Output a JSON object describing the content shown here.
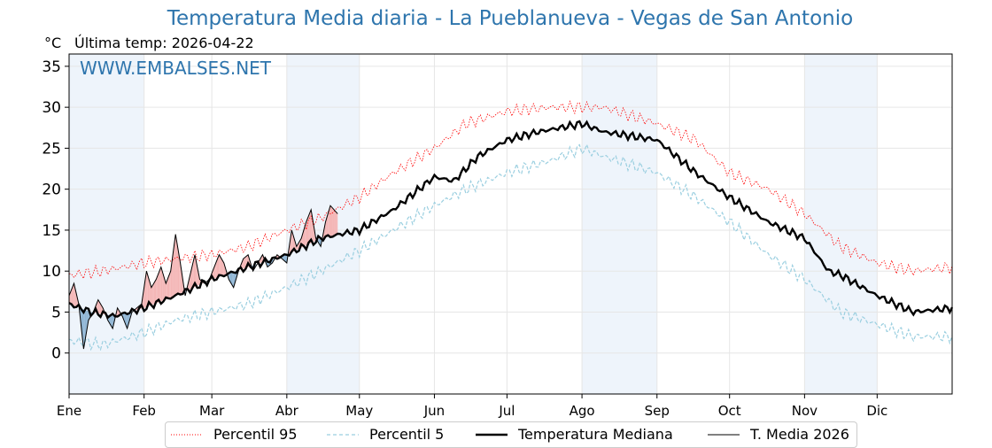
{
  "title": "Temperatura Media diaria - La Pueblanueva - Vegas de San Antonio",
  "unit_label": "°C",
  "last_temp_label": "Última temp: 2026-04-22",
  "watermark": "WWW.EMBALSES.NET",
  "colors": {
    "title": "#2e75ad",
    "p95": "#ff0000",
    "p5": "#9bcfe0",
    "median": "#000000",
    "current": "#000000",
    "above_fill": "#f4b6b6",
    "below_fill": "#8fb5d4",
    "band": "#eef4fb"
  },
  "legend": {
    "p95": "Percentil 95",
    "p5": "Percentil 5",
    "median": "Temperatura Mediana",
    "current": "T. Media 2026"
  },
  "chart_data": {
    "type": "line",
    "xlabel": "",
    "ylabel": "°C",
    "ylim": [
      -5,
      36.5
    ],
    "xlim": [
      1,
      366
    ],
    "yticks": [
      0,
      5,
      10,
      15,
      20,
      25,
      30,
      35
    ],
    "month_ticks": [
      {
        "day": 1,
        "label": "Ene"
      },
      {
        "day": 32,
        "label": "Feb"
      },
      {
        "day": 60,
        "label": "Mar"
      },
      {
        "day": 91,
        "label": "Abr"
      },
      {
        "day": 121,
        "label": "May"
      },
      {
        "day": 152,
        "label": "Jun"
      },
      {
        "day": 182,
        "label": "Jul"
      },
      {
        "day": 213,
        "label": "Ago"
      },
      {
        "day": 244,
        "label": "Sep"
      },
      {
        "day": 274,
        "label": "Oct"
      },
      {
        "day": 305,
        "label": "Nov"
      },
      {
        "day": 335,
        "label": "Dic"
      }
    ],
    "shaded_months": [
      [
        1,
        32
      ],
      [
        91,
        121
      ],
      [
        213,
        244
      ],
      [
        305,
        335
      ]
    ],
    "grid": true,
    "series": [
      {
        "name": "Percentil 95",
        "key": "p95",
        "style": "dotted",
        "x": [
          1,
          15,
          32,
          45,
          60,
          75,
          91,
          105,
          121,
          135,
          152,
          165,
          182,
          200,
          213,
          222,
          244,
          260,
          274,
          290,
          305,
          320,
          335,
          350,
          366
        ],
        "y": [
          9.5,
          10,
          11,
          11.5,
          12,
          13,
          15,
          16.5,
          19,
          22,
          25,
          28,
          29.5,
          30,
          30,
          30,
          28,
          26,
          22,
          20,
          17,
          13,
          11,
          10,
          10.5
        ]
      },
      {
        "name": "Percentil 5",
        "key": "p5",
        "style": "dashed",
        "x": [
          1,
          15,
          32,
          45,
          60,
          75,
          91,
          105,
          121,
          135,
          152,
          165,
          182,
          200,
          213,
          222,
          244,
          260,
          274,
          290,
          305,
          320,
          335,
          350,
          366
        ],
        "y": [
          1.5,
          1,
          2.5,
          4,
          5,
          6,
          8,
          10,
          12.5,
          15,
          18,
          20,
          22,
          23.5,
          25,
          24,
          22,
          19,
          16,
          12,
          9,
          5,
          3.5,
          2,
          2
        ]
      },
      {
        "name": "Temperatura Mediana",
        "key": "median",
        "style": "solid-thick",
        "x": [
          1,
          10,
          20,
          32,
          45,
          60,
          75,
          91,
          105,
          121,
          135,
          152,
          160,
          170,
          182,
          195,
          213,
          222,
          244,
          260,
          274,
          290,
          305,
          315,
          320,
          335,
          350,
          366
        ],
        "y": [
          6,
          5,
          4.5,
          5.5,
          7,
          9,
          10.5,
          12,
          14,
          15,
          17.5,
          21.5,
          21,
          24,
          26,
          27,
          28,
          27,
          26,
          22,
          19,
          16,
          14,
          10,
          9.5,
          7,
          5,
          5.5
        ]
      },
      {
        "name": "T. Media 2026",
        "key": "current",
        "style": "solid-thin",
        "x": [
          1,
          3,
          5,
          7,
          9,
          11,
          13,
          15,
          17,
          19,
          21,
          23,
          25,
          27,
          29,
          31,
          33,
          35,
          37,
          39,
          41,
          43,
          45,
          47,
          49,
          51,
          53,
          55,
          57,
          59,
          61,
          63,
          65,
          67,
          69,
          71,
          73,
          75,
          77,
          79,
          81,
          83,
          85,
          87,
          89,
          91,
          93,
          95,
          97,
          99,
          101,
          103,
          105,
          107,
          109,
          112
        ],
        "y": [
          7,
          8.5,
          6,
          0.5,
          4,
          5,
          6.5,
          5.5,
          4,
          3,
          5.5,
          4.5,
          3,
          5,
          5.5,
          6,
          10,
          8,
          9,
          10.5,
          8.5,
          10,
          14.5,
          11,
          7,
          9.5,
          12,
          9,
          8.5,
          9,
          10.5,
          12,
          11,
          9,
          8,
          10,
          11.5,
          12,
          10,
          11,
          12,
          10.5,
          11,
          12,
          11.5,
          11,
          15,
          13,
          14,
          16,
          17.5,
          14,
          13,
          16,
          18,
          17
        ]
      }
    ]
  }
}
